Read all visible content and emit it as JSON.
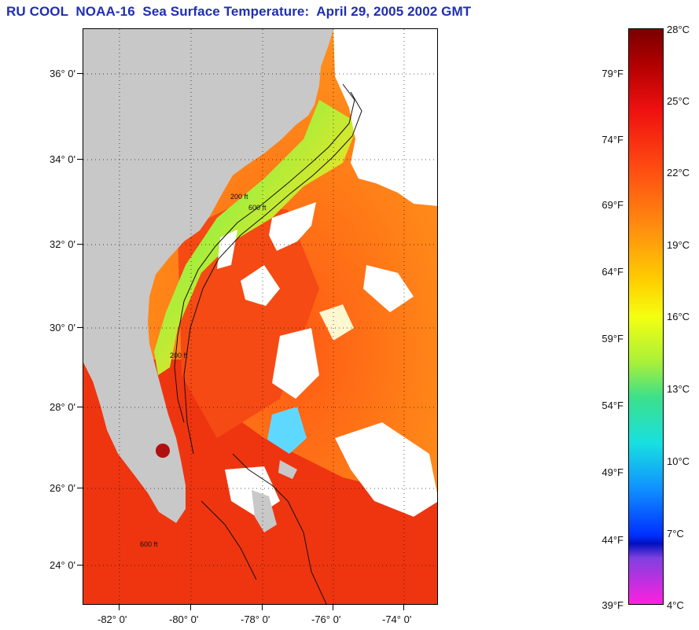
{
  "title": "RU COOL  NOAA-16  Sea Surface Temperature:  April 29, 2005 2002 GMT",
  "map": {
    "lat_labels": [
      "36° 0'",
      "34° 0'",
      "32° 0'",
      "30° 0'",
      "28° 0'",
      "26° 0'",
      "24° 0'"
    ],
    "lon_labels": [
      "-82° 0'",
      "-80° 0'",
      "-78° 0'",
      "-76° 0'",
      "-74° 0'"
    ],
    "isobath_labels": [
      "200 ft",
      "600 ft",
      "600 ft",
      "200 ft"
    ],
    "colors": {
      "land": "#c8c8c8",
      "cloud": "#ffffff",
      "warm": "#ee2a10",
      "mid": "#ff8a18",
      "cool": "#ffe020",
      "cold": "#20b8ff",
      "coldest": "#1030ff"
    }
  },
  "colorbar": {
    "fahrenheit": [
      "79°F",
      "74°F",
      "69°F",
      "64°F",
      "59°F",
      "54°F",
      "49°F",
      "44°F",
      "39°F"
    ],
    "celsius": [
      "28°C",
      "25°C",
      "22°C",
      "19°C",
      "16°C",
      "13°C",
      "10°C",
      "7°C",
      "4°C"
    ]
  }
}
